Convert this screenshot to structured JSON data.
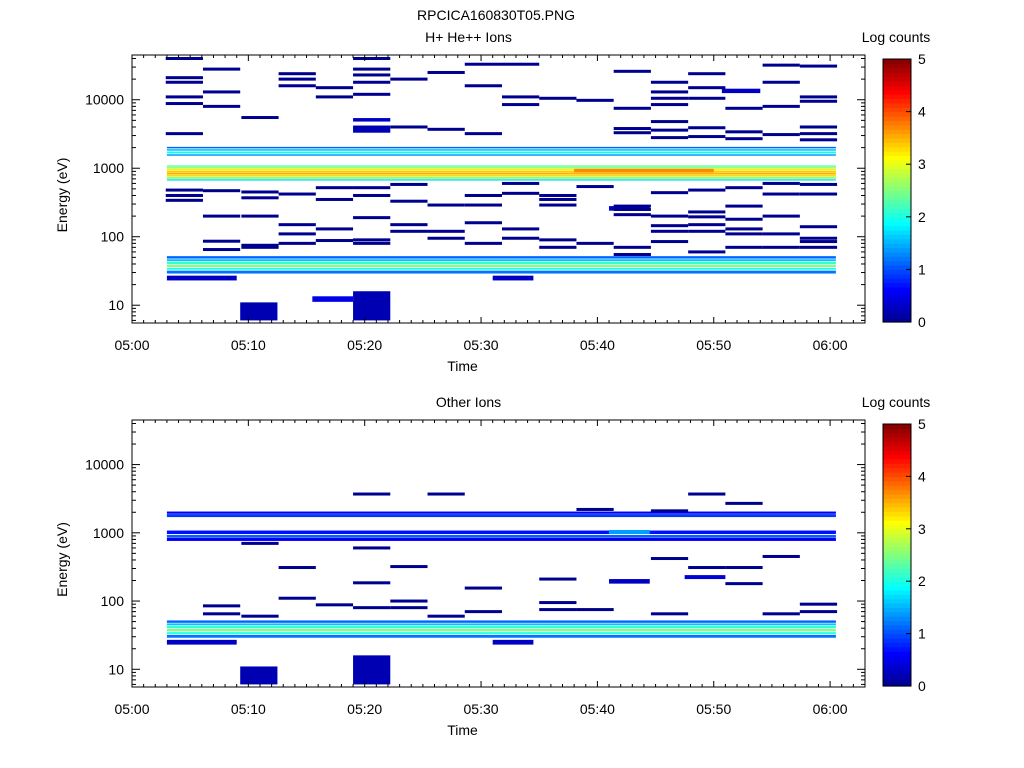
{
  "page_title": "RPCICA160830T05.PNG",
  "colorbar_ticks": [
    "0",
    "1",
    "2",
    "3",
    "4",
    "5"
  ],
  "colors": {
    "background": "#ffffff",
    "axis": "#000000",
    "colormap": [
      "#00008f",
      "#0000ff",
      "#0080ff",
      "#00ffff",
      "#80ff80",
      "#ffff00",
      "#ff8000",
      "#ff0000",
      "#800000"
    ]
  },
  "chart_data": [
    {
      "type": "heatmap",
      "title": "H+ He++ Ions",
      "xlabel": "Time",
      "ylabel": "Energy (eV)",
      "colorbar_label": "Log counts",
      "y_scale": "log",
      "ylim": [
        5.5,
        45000
      ],
      "xlim": [
        "05:00",
        "06:03"
      ],
      "color_range": [
        0,
        5
      ],
      "x_ticks": [
        "05:00",
        "05:10",
        "05:20",
        "05:30",
        "05:40",
        "05:50",
        "06:00"
      ],
      "y_ticks": [
        "10",
        "100",
        "1000",
        "10000"
      ],
      "time_columns": [
        "05:04.5",
        "05:07.7",
        "05:11.0",
        "05:14.2",
        "05:17.4",
        "05:20.6",
        "05:23.8",
        "05:27.0",
        "05:30.2",
        "05:33.4",
        "05:36.6",
        "05:39.8",
        "05:43.0",
        "05:46.2",
        "05:49.4",
        "05:52.6",
        "05:55.8",
        "05:59.0"
      ],
      "cells": [
        {
          "t0": "05:03",
          "t1": "06:00.5",
          "e0": 1100,
          "e1": 1050,
          "v": 2.3
        },
        {
          "t0": "05:03",
          "t1": "06:00.5",
          "e0": 1040,
          "e1": 990,
          "v": 2.6
        },
        {
          "t0": "05:03",
          "t1": "06:00.5",
          "e0": 980,
          "e1": 920,
          "v": 3.2
        },
        {
          "t0": "05:03",
          "t1": "06:00.5",
          "e0": 910,
          "e1": 870,
          "v": 3.4
        },
        {
          "t0": "05:03",
          "t1": "06:00.5",
          "e0": 860,
          "e1": 810,
          "v": 3.5
        },
        {
          "t0": "05:03",
          "t1": "06:00.5",
          "e0": 800,
          "e1": 760,
          "v": 3.3
        },
        {
          "t0": "05:03",
          "t1": "06:00.5",
          "e0": 750,
          "e1": 700,
          "v": 2.6
        },
        {
          "t0": "05:03",
          "t1": "06:00.5",
          "e0": 690,
          "e1": 660,
          "v": 1.7
        },
        {
          "t0": "05:38",
          "t1": "05:50",
          "e0": 980,
          "e1": 870,
          "v": 3.7
        },
        {
          "t0": "05:03",
          "t1": "06:00.5",
          "e0": 2050,
          "e1": 1950,
          "v": 1.1
        },
        {
          "t0": "05:03",
          "t1": "06:00.5",
          "e0": 1900,
          "e1": 1800,
          "v": 1.6
        },
        {
          "t0": "05:03",
          "t1": "06:00.5",
          "e0": 1750,
          "e1": 1650,
          "v": 1.9
        },
        {
          "t0": "05:03",
          "t1": "06:00.5",
          "e0": 1600,
          "e1": 1520,
          "v": 1.4
        },
        {
          "t0": "05:03",
          "t1": "06:00.5",
          "e0": 52,
          "e1": 48,
          "v": 1.1
        },
        {
          "t0": "05:03",
          "t1": "06:00.5",
          "e0": 47,
          "e1": 44,
          "v": 1.6
        },
        {
          "t0": "05:03",
          "t1": "06:00.5",
          "e0": 43,
          "e1": 40,
          "v": 2.1
        },
        {
          "t0": "05:03",
          "t1": "06:00.5",
          "e0": 39,
          "e1": 36,
          "v": 2.5
        },
        {
          "t0": "05:03",
          "t1": "06:00.5",
          "e0": 35,
          "e1": 33,
          "v": 2.0
        },
        {
          "t0": "05:03",
          "t1": "06:00.5",
          "e0": 32,
          "e1": 29,
          "v": 1.2
        },
        {
          "t0": "05:03",
          "t1": "05:09",
          "e0": 27,
          "e1": 23,
          "v": 0.3
        },
        {
          "t0": "05:31",
          "t1": "05:34.5",
          "e0": 27,
          "e1": 23,
          "v": 0.3
        },
        {
          "t0": "05:09.3",
          "t1": "05:12.5",
          "e0": 11,
          "e1": 6,
          "v": 0.2
        },
        {
          "t0": "05:15.5",
          "t1": "05:19",
          "e0": 13.5,
          "e1": 11.2,
          "v": 0.5
        },
        {
          "t0": "05:19",
          "t1": "05:22.2",
          "e0": 16,
          "e1": 6,
          "v": 0.2
        },
        {
          "t0": "05:19",
          "t1": "05:22.2",
          "e0": 4200,
          "e1": 3300,
          "v": 0.2
        },
        {
          "t0": "05:19",
          "t1": "05:22.2",
          "e0": 5400,
          "e1": 4800,
          "v": 0.3
        },
        {
          "t0": "05:41",
          "t1": "05:44.5",
          "e0": 280,
          "e1": 240,
          "v": 0.3
        },
        {
          "t0": "05:50.7",
          "t1": "05:54",
          "e0": 14500,
          "e1": 12500,
          "v": 0.3
        }
      ],
      "lines": [
        {
          "t": "05:04.5",
          "e": [
            40000,
            21000,
            18000,
            11000,
            8800,
            3200,
            480,
            400,
            340
          ]
        },
        {
          "t": "05:07.7",
          "e": [
            28000,
            13000,
            8000,
            470,
            200,
            86,
            65
          ]
        },
        {
          "t": "05:11.0",
          "e": [
            5500,
            450,
            370,
            200,
            75,
            70
          ]
        },
        {
          "t": "05:14.2",
          "e": [
            24000,
            20000,
            16000,
            420,
            150,
            110,
            80
          ]
        },
        {
          "t": "05:17.4",
          "e": [
            15000,
            11000,
            520,
            350,
            130,
            88
          ]
        },
        {
          "t": "05:20.6",
          "e": [
            40000,
            28000,
            23000,
            18000,
            12000,
            520,
            400,
            190,
            90,
            80
          ]
        },
        {
          "t": "05:23.8",
          "e": [
            20000,
            4000,
            580,
            330,
            150,
            120
          ]
        },
        {
          "t": "05:27.0",
          "e": [
            25000,
            3700,
            290,
            120,
            95
          ]
        },
        {
          "t": "05:30.2",
          "e": [
            33000,
            16000,
            3200,
            400,
            290,
            160,
            80
          ]
        },
        {
          "t": "05:33.4",
          "e": [
            33000,
            11000,
            8500,
            600,
            430,
            130,
            95
          ]
        },
        {
          "t": "05:36.6",
          "e": [
            10500,
            400,
            350,
            290,
            90,
            70
          ]
        },
        {
          "t": "05:39.8",
          "e": [
            9800,
            540,
            80
          ]
        },
        {
          "t": "05:43.0",
          "e": [
            26000,
            7500,
            3800,
            3300,
            280,
            250,
            210,
            70,
            55
          ]
        },
        {
          "t": "05:46.2",
          "e": [
            18000,
            13000,
            10500,
            8500,
            4800,
            3600,
            2800,
            440,
            200,
            145,
            120,
            85
          ]
        },
        {
          "t": "05:49.4",
          "e": [
            24000,
            15000,
            10500,
            3900,
            2900,
            480,
            230,
            195,
            150,
            120,
            60
          ]
        },
        {
          "t": "05:52.6",
          "e": [
            7500,
            3400,
            2700,
            520,
            280,
            180,
            130,
            110,
            70
          ]
        },
        {
          "t": "05:55.8",
          "e": [
            32000,
            18000,
            8000,
            3100,
            600,
            420,
            200,
            110,
            70
          ]
        },
        {
          "t": "05:59.0",
          "e": [
            31000,
            11000,
            9500,
            4000,
            3200,
            2600,
            580,
            420,
            140,
            95,
            85,
            70
          ]
        }
      ]
    },
    {
      "type": "heatmap",
      "title": "Other Ions",
      "xlabel": "Time",
      "ylabel": "Energy (eV)",
      "colorbar_label": "Log counts",
      "y_scale": "log",
      "ylim": [
        5.5,
        45000
      ],
      "xlim": [
        "05:00",
        "06:03"
      ],
      "color_range": [
        0,
        5
      ],
      "x_ticks": [
        "05:00",
        "05:10",
        "05:20",
        "05:30",
        "05:40",
        "05:50",
        "06:00"
      ],
      "y_ticks": [
        "10",
        "100",
        "1000",
        "10000"
      ],
      "cells": [
        {
          "t0": "05:03",
          "t1": "06:00.5",
          "e0": 2050,
          "e1": 1900,
          "v": 0.6
        },
        {
          "t0": "05:03",
          "t1": "06:00.5",
          "e0": 1880,
          "e1": 1700,
          "v": 0.9
        },
        {
          "t0": "05:03",
          "t1": "06:00.5",
          "e0": 1080,
          "e1": 960,
          "v": 0.7
        },
        {
          "t0": "05:03",
          "t1": "06:00.5",
          "e0": 930,
          "e1": 860,
          "v": 1.1
        },
        {
          "t0": "05:03",
          "t1": "06:00.5",
          "e0": 850,
          "e1": 760,
          "v": 0.6
        },
        {
          "t0": "05:41",
          "t1": "05:44.5",
          "e0": 1100,
          "e1": 960,
          "v": 1.4
        },
        {
          "t0": "05:03",
          "t1": "06:00.5",
          "e0": 52,
          "e1": 48,
          "v": 1.1
        },
        {
          "t0": "05:03",
          "t1": "06:00.5",
          "e0": 47,
          "e1": 44,
          "v": 1.6
        },
        {
          "t0": "05:03",
          "t1": "06:00.5",
          "e0": 43,
          "e1": 40,
          "v": 2.1
        },
        {
          "t0": "05:03",
          "t1": "06:00.5",
          "e0": 39,
          "e1": 36,
          "v": 2.5
        },
        {
          "t0": "05:03",
          "t1": "06:00.5",
          "e0": 35,
          "e1": 33,
          "v": 2.0
        },
        {
          "t0": "05:03",
          "t1": "06:00.5",
          "e0": 32,
          "e1": 29,
          "v": 1.2
        },
        {
          "t0": "05:03",
          "t1": "05:09",
          "e0": 27,
          "e1": 23,
          "v": 0.3
        },
        {
          "t0": "05:31",
          "t1": "05:34.5",
          "e0": 27,
          "e1": 23,
          "v": 0.3
        },
        {
          "t0": "05:09.3",
          "t1": "05:12.5",
          "e0": 11,
          "e1": 6,
          "v": 0.2
        },
        {
          "t0": "05:19",
          "t1": "05:22.2",
          "e0": 16,
          "e1": 6,
          "v": 0.2
        },
        {
          "t0": "05:41",
          "t1": "05:44.5",
          "e0": 210,
          "e1": 180,
          "v": 0.3
        },
        {
          "t0": "05:47.5",
          "t1": "05:51",
          "e0": 240,
          "e1": 210,
          "v": 0.4
        }
      ],
      "lines": [
        {
          "t": "05:07.7",
          "e": [
            85,
            65
          ]
        },
        {
          "t": "05:11.0",
          "e": [
            700,
            60
          ]
        },
        {
          "t": "05:14.2",
          "e": [
            310,
            110
          ]
        },
        {
          "t": "05:17.4",
          "e": [
            88
          ]
        },
        {
          "t": "05:20.6",
          "e": [
            3700,
            600,
            185,
            80
          ]
        },
        {
          "t": "05:23.8",
          "e": [
            320,
            100,
            80
          ]
        },
        {
          "t": "05:27.0",
          "e": [
            3700,
            60
          ]
        },
        {
          "t": "05:30.2",
          "e": [
            155,
            70
          ]
        },
        {
          "t": "05:36.6",
          "e": [
            210,
            95,
            75
          ]
        },
        {
          "t": "05:39.8",
          "e": [
            2200,
            75
          ]
        },
        {
          "t": "05:46.2",
          "e": [
            2100,
            420,
            65
          ]
        },
        {
          "t": "05:49.4",
          "e": [
            3700,
            310
          ]
        },
        {
          "t": "05:52.6",
          "e": [
            2700,
            310,
            180
          ]
        },
        {
          "t": "05:55.8",
          "e": [
            450,
            65
          ]
        },
        {
          "t": "05:59.0",
          "e": [
            90,
            70
          ]
        }
      ]
    }
  ]
}
